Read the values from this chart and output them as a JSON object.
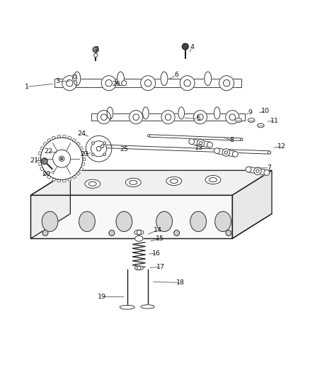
{
  "background_color": "#ffffff",
  "line_color": "#1a1a1a",
  "fig_width": 4.38,
  "fig_height": 5.33,
  "dpi": 100,
  "label_configs": [
    [
      1,
      0.085,
      0.83,
      0.175,
      0.84
    ],
    [
      2,
      0.31,
      0.952,
      0.31,
      0.93
    ],
    [
      3,
      0.185,
      0.848,
      0.23,
      0.848
    ],
    [
      4,
      0.62,
      0.958,
      0.61,
      0.938
    ],
    [
      5,
      0.64,
      0.726,
      0.59,
      0.73
    ],
    [
      6,
      0.57,
      0.868,
      0.54,
      0.852
    ],
    [
      7,
      0.87,
      0.568,
      0.82,
      0.568
    ],
    [
      8,
      0.748,
      0.658,
      0.718,
      0.668
    ],
    [
      9,
      0.808,
      0.748,
      0.79,
      0.738
    ],
    [
      10,
      0.858,
      0.752,
      0.832,
      0.745
    ],
    [
      11,
      0.888,
      0.72,
      0.858,
      0.718
    ],
    [
      12,
      0.91,
      0.638,
      0.878,
      0.632
    ],
    [
      13,
      0.642,
      0.632,
      0.638,
      0.65
    ],
    [
      14,
      0.51,
      0.368,
      0.472,
      0.352
    ],
    [
      15,
      0.516,
      0.34,
      0.48,
      0.33
    ],
    [
      16,
      0.504,
      0.292,
      0.475,
      0.29
    ],
    [
      17,
      0.518,
      0.248,
      0.478,
      0.246
    ],
    [
      18,
      0.582,
      0.198,
      0.488,
      0.2
    ],
    [
      19,
      0.328,
      0.152,
      0.405,
      0.152
    ],
    [
      20,
      0.148,
      0.548,
      0.178,
      0.56
    ],
    [
      21,
      0.108,
      0.592,
      0.148,
      0.59
    ],
    [
      22,
      0.155,
      0.622,
      0.188,
      0.616
    ],
    [
      23,
      0.272,
      0.612,
      0.298,
      0.618
    ],
    [
      24,
      0.262,
      0.678,
      0.29,
      0.668
    ],
    [
      25,
      0.4,
      0.628,
      0.4,
      0.628
    ],
    [
      26,
      0.375,
      0.84,
      0.368,
      0.852
    ]
  ]
}
